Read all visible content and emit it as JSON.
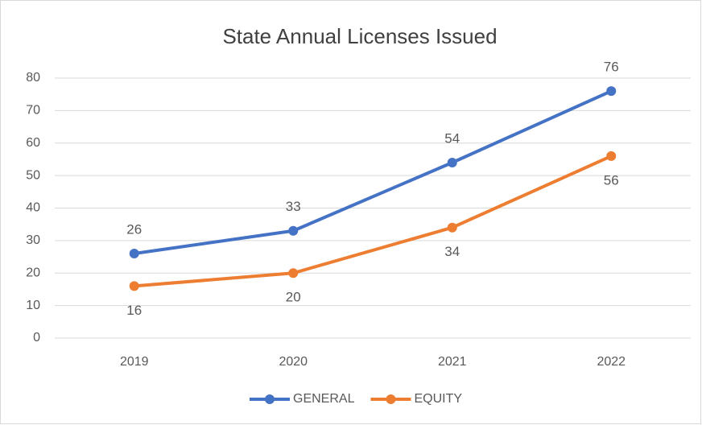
{
  "chart_data": {
    "type": "line",
    "title": "State Annual Licenses Issued",
    "categories": [
      "2019",
      "2020",
      "2021",
      "2022"
    ],
    "series": [
      {
        "name": "GENERAL",
        "color": "#4472c4",
        "values": [
          26,
          33,
          54,
          76
        ]
      },
      {
        "name": "EQUITY",
        "color": "#ed7d31",
        "values": [
          16,
          20,
          34,
          56
        ]
      }
    ],
    "ylim": [
      0,
      80
    ],
    "yticks": [
      0,
      10,
      20,
      30,
      40,
      50,
      60,
      70,
      80
    ],
    "grid": true,
    "legend": "bottom"
  }
}
